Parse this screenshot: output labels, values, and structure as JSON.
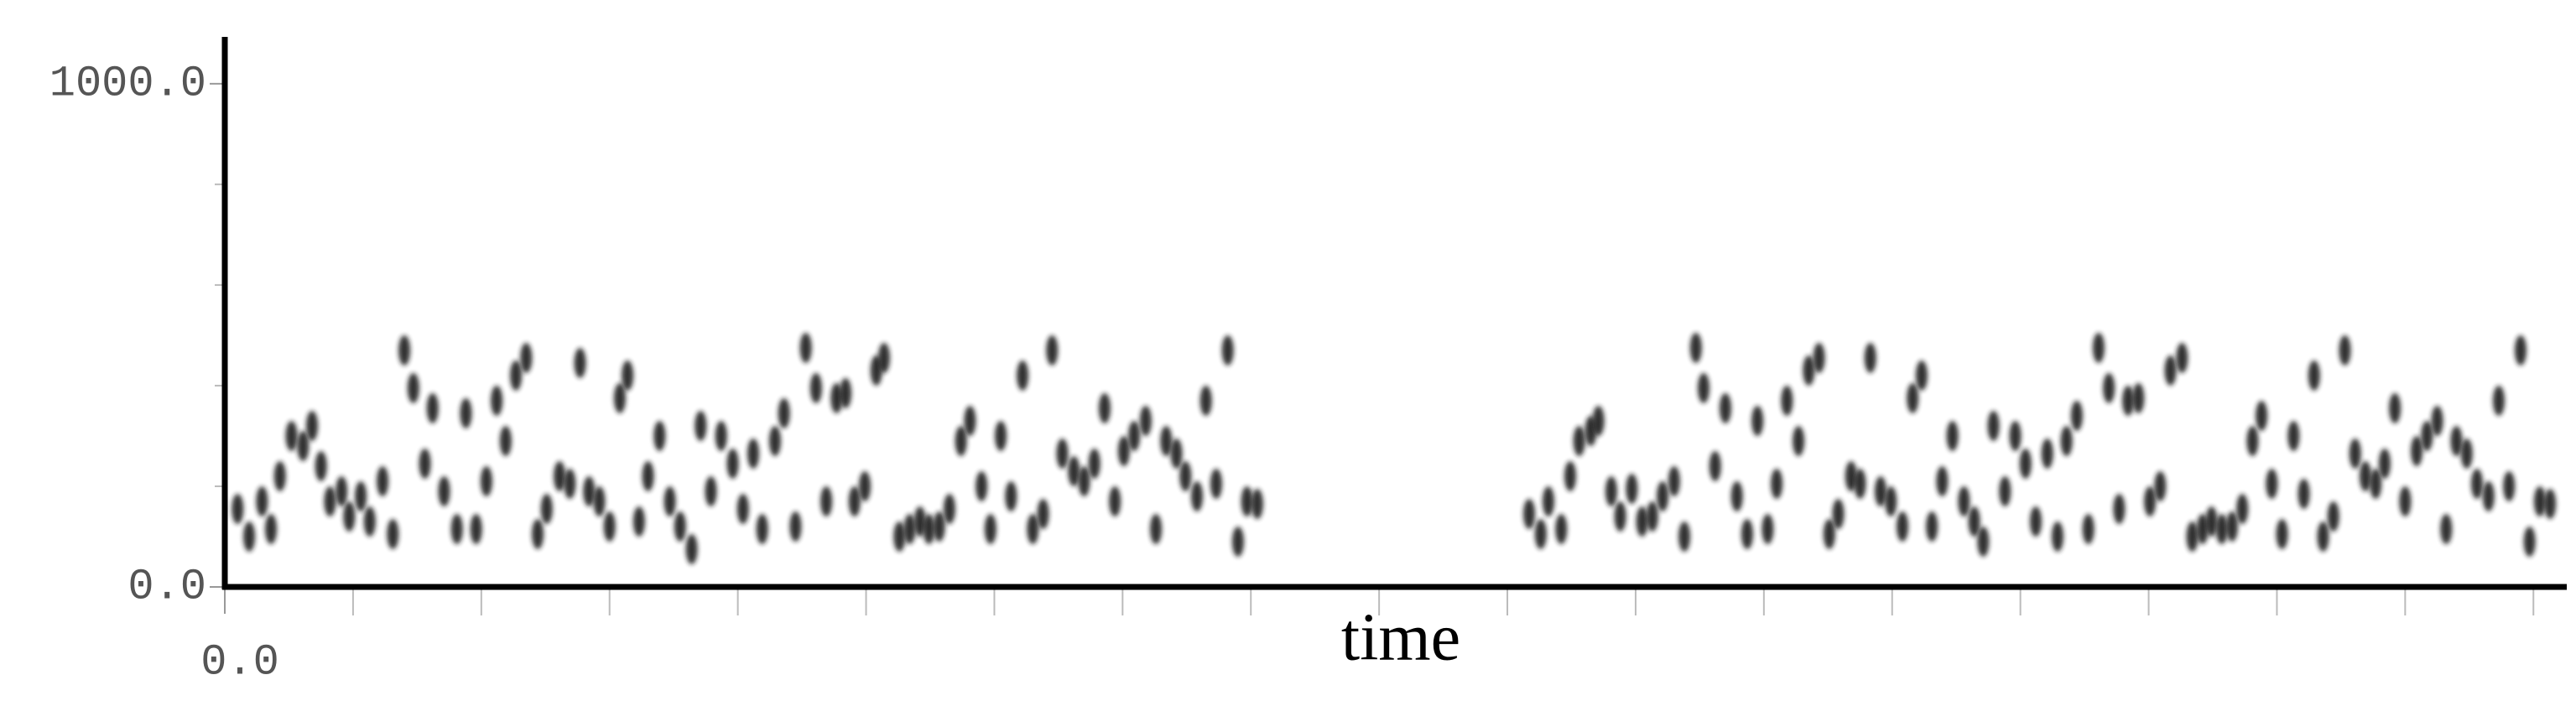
{
  "chart_data": {
    "type": "scatter",
    "x_label": "time",
    "xlim": [
      0,
      18.26
    ],
    "ylim": [
      0,
      1093
    ],
    "xticks": [
      {
        "value": 0,
        "label": "0.0"
      }
    ],
    "xminorticks": [
      1,
      2,
      3,
      4,
      5,
      6,
      7,
      8,
      9,
      10,
      11,
      12,
      13,
      14,
      15,
      16,
      17,
      18
    ],
    "yticks": [
      {
        "value": 0,
        "label": "0.0"
      },
      {
        "value": 1000,
        "label": "1000.0"
      }
    ],
    "yminorticks": [
      200,
      400,
      600,
      800
    ],
    "grid": false,
    "series": [
      {
        "color": "#1a1a1a",
        "x": [
          0.1,
          0.19,
          0.29,
          0.36,
          0.43,
          0.52,
          0.61,
          0.68,
          0.75,
          0.82,
          0.91,
          0.97,
          1.06,
          1.13,
          1.23,
          1.31,
          1.4,
          1.47,
          1.56,
          1.62,
          1.71,
          1.81,
          1.88,
          1.96,
          2.04,
          2.12,
          2.19,
          2.27,
          2.35,
          2.44,
          2.51,
          2.61,
          2.69,
          2.77,
          2.84,
          2.92,
          3.0,
          3.08,
          3.14,
          3.23,
          3.3,
          3.39,
          3.47,
          3.55,
          3.64,
          3.71,
          3.79,
          3.87,
          3.96,
          4.04,
          4.12,
          4.19,
          4.29,
          4.36,
          4.45,
          4.53,
          4.61,
          4.69,
          4.77,
          4.84,
          4.91,
          4.99,
          5.08,
          5.14,
          5.26,
          5.34,
          5.42,
          5.49,
          5.57,
          5.65,
          5.74,
          5.81,
          5.9,
          5.97,
          6.05,
          6.13,
          6.22,
          6.3,
          6.38,
          6.45,
          6.53,
          6.62,
          6.7,
          6.78,
          6.86,
          6.94,
          7.01,
          7.09,
          7.18,
          7.26,
          7.34,
          7.42,
          7.49,
          7.58,
          7.65,
          7.73,
          7.82,
          7.9,
          7.97,
          8.05,
          10.17,
          10.26,
          10.32,
          10.42,
          10.49,
          10.56,
          10.65,
          10.71,
          10.81,
          10.88,
          10.97,
          11.05,
          11.13,
          11.21,
          11.3,
          11.38,
          11.47,
          11.53,
          11.62,
          11.7,
          11.79,
          11.87,
          11.95,
          12.03,
          12.1,
          12.18,
          12.27,
          12.35,
          12.43,
          12.51,
          12.58,
          12.68,
          12.75,
          12.83,
          12.91,
          12.99,
          13.08,
          13.16,
          13.23,
          13.31,
          13.39,
          13.47,
          13.56,
          13.64,
          13.71,
          13.79,
          13.88,
          13.96,
          14.04,
          14.12,
          14.21,
          14.29,
          14.36,
          14.44,
          14.53,
          14.61,
          14.69,
          14.77,
          14.84,
          14.92,
          15.01,
          15.09,
          15.17,
          15.26,
          15.34,
          15.42,
          15.49,
          15.57,
          15.65,
          15.73,
          15.81,
          15.88,
          15.96,
          16.04,
          16.13,
          16.21,
          16.29,
          16.36,
          16.44,
          16.53,
          16.61,
          16.69,
          16.77,
          16.84,
          16.92,
          17.0,
          17.09,
          17.17,
          17.25,
          17.32,
          17.4,
          17.48,
          17.56,
          17.65,
          17.73,
          17.81,
          17.9,
          17.97,
          18.05,
          18.13
        ],
        "values": [
          155,
          100,
          170,
          115,
          220,
          300,
          280,
          320,
          240,
          170,
          190,
          140,
          180,
          130,
          210,
          105,
          470,
          395,
          245,
          355,
          190,
          115,
          345,
          115,
          210,
          370,
          290,
          420,
          455,
          105,
          155,
          220,
          205,
          445,
          190,
          170,
          120,
          375,
          420,
          130,
          220,
          300,
          170,
          120,
          75,
          320,
          190,
          300,
          245,
          155,
          265,
          115,
          290,
          345,
          120,
          475,
          395,
          170,
          375,
          385,
          170,
          200,
          430,
          455,
          100,
          115,
          130,
          115,
          120,
          155,
          290,
          330,
          200,
          115,
          300,
          180,
          420,
          115,
          145,
          470,
          265,
          230,
          210,
          245,
          355,
          170,
          270,
          300,
          330,
          115,
          290,
          265,
          220,
          180,
          370,
          205,
          470,
          90,
          170,
          165,
          145,
          105,
          170,
          115,
          220,
          290,
          310,
          330,
          190,
          140,
          195,
          130,
          140,
          180,
          210,
          100,
          475,
          395,
          240,
          355,
          180,
          105,
          330,
          115,
          205,
          370,
          290,
          430,
          455,
          105,
          145,
          220,
          205,
          455,
          190,
          170,
          120,
          375,
          420,
          120,
          210,
          300,
          170,
          130,
          90,
          320,
          190,
          300,
          245,
          130,
          265,
          100,
          290,
          340,
          115,
          475,
          395,
          155,
          370,
          375,
          170,
          200,
          430,
          455,
          100,
          115,
          130,
          115,
          120,
          155,
          290,
          340,
          205,
          105,
          300,
          185,
          420,
          100,
          140,
          470,
          265,
          220,
          205,
          245,
          355,
          170,
          270,
          300,
          330,
          115,
          290,
          265,
          205,
          180,
          370,
          200,
          470,
          90,
          170,
          165
        ]
      }
    ]
  }
}
